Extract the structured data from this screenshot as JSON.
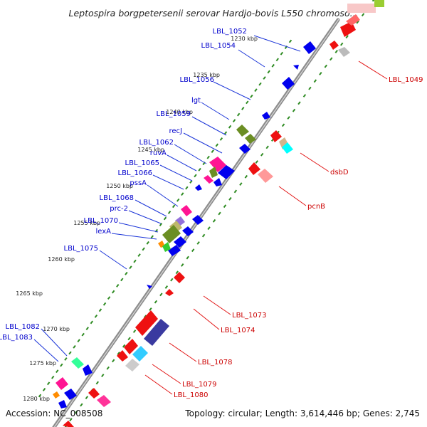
{
  "title": "Leptospira borgpetersenii serovar Hardjo-bovis L550 chromoso...",
  "accession": "Accession: NC_008508",
  "topology": "Topology: circular; Length: 3,614,446 bp; Genes: 2,745",
  "colors": {
    "backbone": "#8c8c8c",
    "ticks": "#2e8b22",
    "forward_label": "#0000cc",
    "reverse_label": "#cc0000"
  },
  "ticks": [
    {
      "kbp": 1230,
      "label": "1230 kbp"
    },
    {
      "kbp": 1235,
      "label": "1235 kbp"
    },
    {
      "kbp": 1240,
      "label": "1240 kbp"
    },
    {
      "kbp": 1245,
      "label": "1245 kbp"
    },
    {
      "kbp": 1250,
      "label": "1250 kbp"
    },
    {
      "kbp": 1255,
      "label": "1255 kbp"
    },
    {
      "kbp": 1260,
      "label": "1260 kbp"
    },
    {
      "kbp": 1265,
      "label": "1265 kbp"
    },
    {
      "kbp": 1270,
      "label": "1270 kbp"
    },
    {
      "kbp": 1275,
      "label": "1275 kbp"
    },
    {
      "kbp": 1280,
      "label": "1280 kbp"
    }
  ],
  "labels_forward": [
    "LBL_1052",
    "LBL_1054",
    "LBL_1056",
    "lgt",
    "LBL_1059",
    "recJ",
    "LBL_1062",
    "ruvA",
    "LBL_1065",
    "LBL_1066",
    "pssA",
    "LBL_1068",
    "prc-2",
    "LBL_1070",
    "lexA",
    "LBL_1075",
    "LBL_1082",
    "LBL_1083"
  ],
  "labels_reverse": [
    "LBL_1049",
    "dsbD",
    "pcnB",
    "LBL_1073",
    "LBL_1074",
    "LBL_1078",
    "LBL_1079",
    "LBL_1080"
  ]
}
